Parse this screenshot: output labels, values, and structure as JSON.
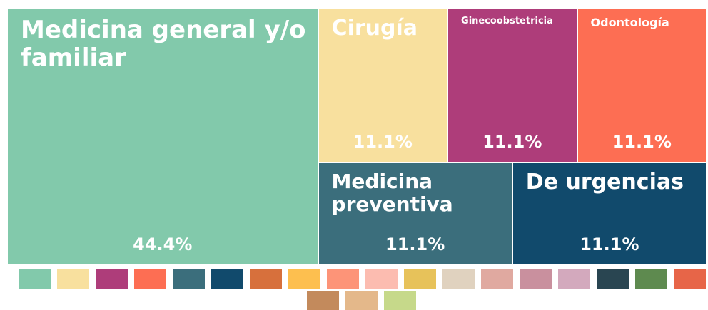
{
  "chart_data": {
    "type": "treemap",
    "categories": [
      "Medicina general y/o familiar",
      "Cirugía",
      "Ginecoobstetricia",
      "Odontología",
      "Medicina preventiva",
      "De urgencias"
    ],
    "values": [
      44.4,
      11.1,
      11.1,
      11.1,
      11.1,
      11.1
    ],
    "value_labels": [
      "44.4%",
      "11.1%",
      "11.1%",
      "11.1%",
      "11.1%",
      "11.1%"
    ],
    "colors": [
      "#82c9ab",
      "#f8e09e",
      "#ae3d7a",
      "#fd6e53",
      "#3b6e7c",
      "#114a6c"
    ],
    "palette": [
      "#82c9ab",
      "#f8e09e",
      "#ae3d7a",
      "#fd6e53",
      "#3b6e7c",
      "#114a6c",
      "#d7703c",
      "#fdbf4f",
      "#fd9478",
      "#fcbcb0",
      "#e7c25a",
      "#e0d2bf",
      "#e0a9a0",
      "#c9909e",
      "#d3a9bd",
      "#294551",
      "#5e8a4f",
      "#e76548",
      "#c38a5c",
      "#e4b88a",
      "#c6d98a"
    ]
  }
}
